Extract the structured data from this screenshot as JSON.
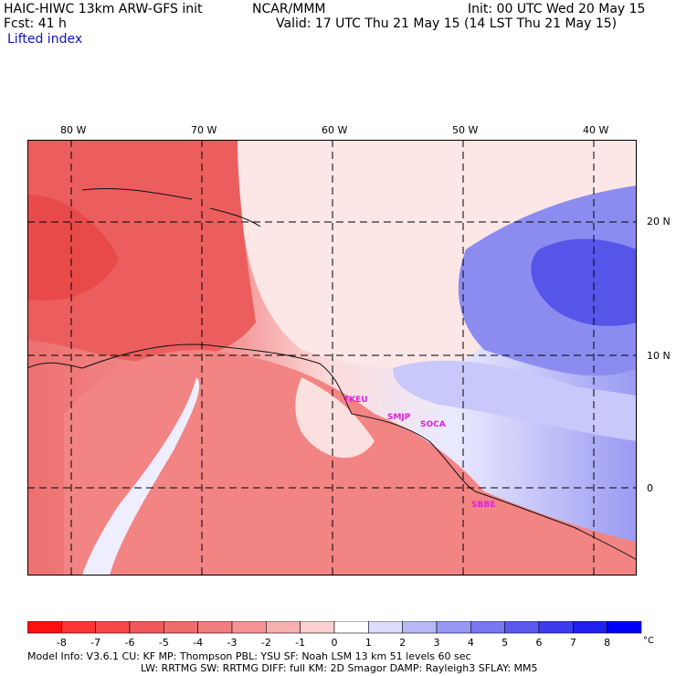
{
  "header": {
    "line1_left": "HAIC-HIWC 13km ARW-GFS init",
    "line1_mid": "NCAR/MMM",
    "line1_right": "Init: 00 UTC Wed 20 May 15",
    "line2_left": "Fcst:   41 h",
    "line2_right": "Valid: 17 UTC Thu 21 May 15 (14 LST Thu 21 May 15)",
    "field": "Lifted index"
  },
  "map": {
    "lon_labels": [
      "80 W",
      "70 W",
      "60 W",
      "50 W",
      "40 W"
    ],
    "lat_labels": [
      "20 N",
      "10 N",
      "0"
    ],
    "sites": [
      "TKEU",
      "SMJP",
      "SOCA",
      "SBBE"
    ]
  },
  "colorbar": {
    "ticks": [
      "-8",
      "-7",
      "-6",
      "-5",
      "-4",
      "-3",
      "-2",
      "-1",
      "0",
      "1",
      "2",
      "3",
      "4",
      "5",
      "6",
      "7",
      "8"
    ],
    "unit": "°C",
    "colors": [
      "#ff1010",
      "#ff3434",
      "#f74848",
      "#f05a5a",
      "#ed6c6c",
      "#f07e7e",
      "#f49494",
      "#f8b0b0",
      "#fcd0d0",
      "#ffffff",
      "#dcdcff",
      "#b8b8f8",
      "#9898f4",
      "#7878f0",
      "#5a5aee",
      "#3c3cee",
      "#2020f0",
      "#0000f8"
    ]
  },
  "footer": {
    "line1": "Model Info: V3.6.1    CU: KF      MP: Thompson     PBL: YSU        SF: Noah LSM     13 km    51 levels   60 sec",
    "line2": "LW: RRTMG    SW: RRTMG   DIFF: full    KM: 2D Smagor DAMP: Rayleigh3   SFLAY: MM5"
  }
}
